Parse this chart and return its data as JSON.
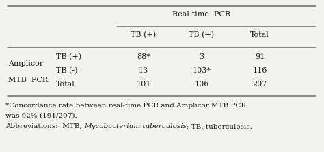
{
  "title": "Real-time  PCR",
  "col_headers": [
    "TB (+)",
    "TB (−)",
    "Total"
  ],
  "row_group_line1": "Amplicor",
  "row_group_line2": "MTB  PCR",
  "row_sub_labels": [
    "TB (+)",
    "TB (-)",
    "Total"
  ],
  "data": [
    [
      "88*",
      "3",
      "91"
    ],
    [
      "13",
      "103*",
      "116"
    ],
    [
      "101",
      "106",
      "207"
    ]
  ],
  "footnote1": "*Concordance rate between real-time PCR and Amplicor MTB PCR",
  "footnote2": "was 92% (191/207).",
  "footnote3_plain1": "Abbreviations:  MTB, ",
  "footnote3_italic": "Mycobacterium tuberculosis",
  "footnote3_plain2": "; TB, tuberculosis.",
  "bg_color": "#f2f2ee",
  "text_color": "#1a1a1a",
  "font_size": 8.0,
  "footnote_size": 7.5
}
